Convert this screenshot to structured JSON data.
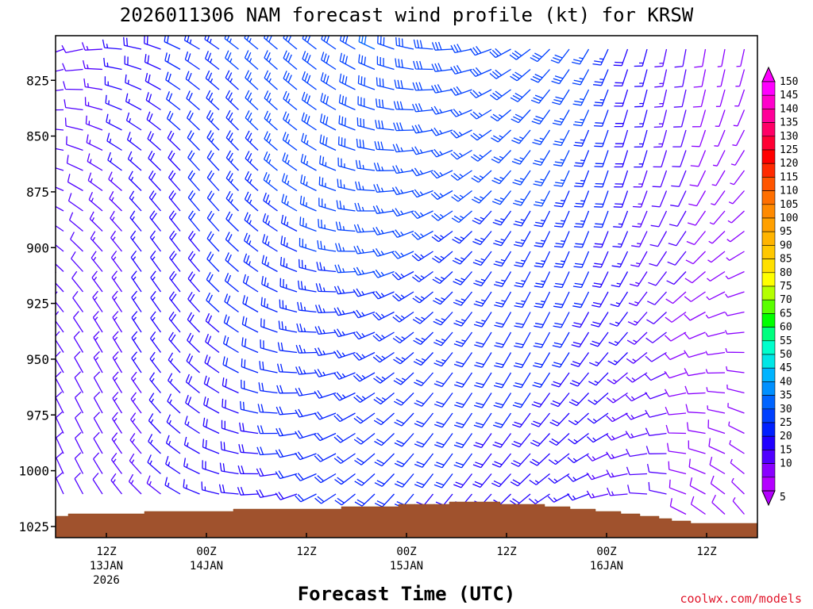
{
  "title": "2026011306 NAM forecast wind profile (kt) for KRSW",
  "x_axis_title": "Forecast Time (UTC)",
  "credit": "coolwx.com/models",
  "y_ticks": [
    "825",
    "850",
    "875",
    "900",
    "925",
    "950",
    "975",
    "1000",
    "1025"
  ],
  "x_ticks": [
    {
      "line1": "12Z",
      "line2": "13JAN",
      "line3": "2026"
    },
    {
      "line1": "00Z",
      "line2": "14JAN",
      "line3": ""
    },
    {
      "line1": "12Z",
      "line2": "",
      "line3": ""
    },
    {
      "line1": "00Z",
      "line2": "15JAN",
      "line3": ""
    },
    {
      "line1": "12Z",
      "line2": "",
      "line3": ""
    },
    {
      "line1": "00Z",
      "line2": "16JAN",
      "line3": ""
    },
    {
      "line1": "12Z",
      "line2": "",
      "line3": ""
    }
  ],
  "colorbar": {
    "labels": [
      "150",
      "145",
      "140",
      "135",
      "130",
      "125",
      "120",
      "115",
      "110",
      "105",
      "100",
      "95",
      "90",
      "85",
      "80",
      "75",
      "70",
      "65",
      "60",
      "55",
      "50",
      "45",
      "40",
      "35",
      "30",
      "25",
      "20",
      "15",
      "10",
      "5"
    ],
    "colors": [
      "#ff00ff",
      "#ff00cc",
      "#ff0099",
      "#ff0066",
      "#ff0033",
      "#ff0000",
      "#ff2a00",
      "#ff5500",
      "#ff6f00",
      "#ff8a00",
      "#ffa000",
      "#ffb400",
      "#ffc800",
      "#ffe000",
      "#ffff00",
      "#b4ff00",
      "#5aff00",
      "#00ff00",
      "#00ff7f",
      "#00ffcc",
      "#00e6e6",
      "#00b4ff",
      "#0090ff",
      "#0064ff",
      "#0040ff",
      "#0020ff",
      "#2000ff",
      "#5000ff",
      "#8a00ff",
      "#b400ff"
    ]
  },
  "chart_data": {
    "type": "wind_barb_profile",
    "title": "2026011306 NAM forecast wind profile (kt) for KRSW",
    "xlabel": "Forecast Time (UTC)",
    "ylabel": "",
    "units": "kt",
    "y_axis": {
      "quantity": "pressure (hPa)",
      "range": [
        1030,
        805
      ],
      "ticks": [
        825,
        850,
        875,
        900,
        925,
        950,
        975,
        1000,
        1025
      ]
    },
    "x_axis": {
      "start": "2026-01-13 06Z",
      "end": "2026-01-16 21Z",
      "ticks": [
        "12Z 13JAN 2026",
        "00Z 14JAN",
        "12Z",
        "00Z 15JAN",
        "12Z",
        "00Z 16JAN",
        "12Z"
      ]
    },
    "colorbar": {
      "min": 5,
      "max": 150,
      "step": 5,
      "units": "kt"
    },
    "terrain_color": "#a0522d"
  }
}
